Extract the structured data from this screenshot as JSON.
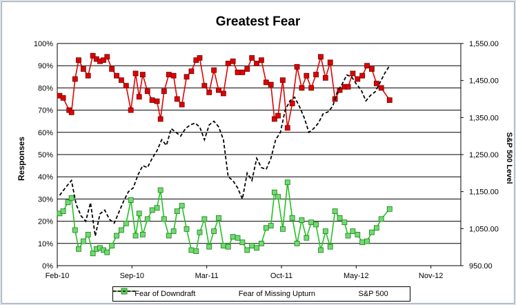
{
  "chart_data": {
    "type": "line",
    "title": "Greatest Fear",
    "ylabel": "Responses",
    "y2label": "S&P 500 Level",
    "y_ticks": [
      "0%",
      "10%",
      "20%",
      "30%",
      "40%",
      "50%",
      "60%",
      "70%",
      "80%",
      "90%",
      "100%"
    ],
    "y2_ticks": [
      "950.00",
      "1,050.00",
      "1,150.00",
      "1,250.00",
      "1,350.00",
      "1,450.00",
      "1,550.00"
    ],
    "x_ticks": [
      "Feb-10",
      "Sep-10",
      "Mar-11",
      "Oct-11",
      "May-12",
      "Nov-12"
    ],
    "ylim": [
      0,
      1
    ],
    "y2lim": [
      950,
      1550
    ],
    "xlim": [
      0,
      34
    ],
    "grid": "horizontal",
    "legend_position": "bottom",
    "series": [
      {
        "name": "Fear of Downdraft",
        "axis": "left",
        "color": "#e00000",
        "style": "solid",
        "marker": "square",
        "x": [
          0.2,
          0.5,
          1.0,
          1.2,
          1.5,
          1.8,
          2.2,
          2.6,
          3.0,
          3.3,
          3.6,
          3.9,
          4.2,
          4.6,
          5.0,
          5.4,
          5.8,
          6.2,
          6.6,
          6.9,
          7.2,
          7.6,
          8.0,
          8.4,
          8.7,
          9.0,
          9.4,
          9.8,
          10.1,
          10.5,
          10.9,
          11.3,
          11.7,
          12.0,
          12.4,
          12.8,
          13.2,
          13.6,
          14.0,
          14.4,
          14.8,
          15.2,
          15.6,
          16.0,
          16.4,
          16.8,
          17.2,
          17.6,
          18.0,
          18.3,
          18.6,
          19.0,
          19.4,
          19.8,
          20.2,
          20.6,
          21.0,
          21.4,
          21.8,
          22.2,
          22.6,
          23.0,
          23.4,
          23.8,
          24.2,
          24.5,
          24.9,
          25.3,
          25.7,
          26.1,
          26.5,
          26.9,
          27.3,
          28.0
        ],
        "values": [
          0.765,
          0.755,
          0.7,
          0.69,
          0.84,
          0.925,
          0.885,
          0.855,
          0.945,
          0.93,
          0.92,
          0.925,
          0.94,
          0.885,
          0.855,
          0.835,
          0.81,
          0.7,
          0.865,
          0.76,
          0.86,
          0.785,
          0.745,
          0.74,
          0.66,
          0.785,
          0.86,
          0.855,
          0.75,
          0.725,
          0.85,
          0.875,
          0.925,
          0.935,
          0.81,
          0.78,
          0.88,
          0.79,
          0.775,
          0.91,
          0.92,
          0.87,
          0.87,
          0.885,
          0.935,
          0.91,
          0.925,
          0.825,
          0.815,
          0.66,
          0.675,
          0.835,
          0.62,
          0.73,
          0.895,
          0.8,
          0.855,
          0.8,
          0.86,
          0.94,
          0.845,
          0.915,
          0.75,
          0.79,
          0.805,
          0.805,
          0.865,
          0.84,
          0.855,
          0.9,
          0.885,
          0.82,
          0.8,
          0.745
        ]
      },
      {
        "name": "Fear of Missing Upturn",
        "axis": "left",
        "color": "#22c022",
        "style": "solid",
        "marker": "square",
        "x": [
          0.2,
          0.5,
          0.9,
          1.2,
          1.5,
          1.8,
          2.2,
          2.6,
          3.0,
          3.3,
          3.6,
          3.9,
          4.2,
          4.6,
          5.0,
          5.4,
          5.8,
          6.2,
          6.6,
          6.9,
          7.2,
          7.6,
          8.0,
          8.4,
          8.7,
          9.0,
          9.4,
          9.8,
          10.1,
          10.5,
          10.9,
          11.3,
          11.7,
          12.0,
          12.4,
          12.8,
          13.2,
          13.6,
          14.0,
          14.4,
          14.8,
          15.2,
          15.6,
          16.0,
          16.4,
          16.8,
          17.2,
          17.6,
          18.0,
          18.3,
          18.6,
          19.0,
          19.4,
          19.8,
          20.2,
          20.6,
          21.0,
          21.4,
          21.8,
          22.2,
          22.6,
          23.0,
          23.4,
          23.8,
          24.2,
          24.5,
          24.9,
          25.3,
          25.7,
          26.1,
          26.5,
          26.9,
          27.3,
          28.0
        ],
        "values": [
          0.235,
          0.245,
          0.285,
          0.305,
          0.16,
          0.075,
          0.11,
          0.14,
          0.055,
          0.075,
          0.08,
          0.07,
          0.06,
          0.09,
          0.135,
          0.16,
          0.19,
          0.295,
          0.135,
          0.235,
          0.14,
          0.21,
          0.25,
          0.26,
          0.34,
          0.21,
          0.135,
          0.155,
          0.245,
          0.27,
          0.165,
          0.07,
          0.065,
          0.15,
          0.21,
          0.085,
          0.155,
          0.215,
          0.09,
          0.085,
          0.13,
          0.125,
          0.105,
          0.07,
          0.09,
          0.08,
          0.1,
          0.17,
          0.18,
          0.33,
          0.31,
          0.165,
          0.375,
          0.215,
          0.1,
          0.205,
          0.125,
          0.195,
          0.185,
          0.07,
          0.155,
          0.085,
          0.245,
          0.215,
          0.195,
          0.135,
          0.155,
          0.14,
          0.105,
          0.11,
          0.15,
          0.17,
          0.21,
          0.255
        ]
      },
      {
        "name": "S&P 500",
        "axis": "right",
        "color": "#000000",
        "style": "dashed",
        "marker": "none",
        "x": [
          0.2,
          0.8,
          1.2,
          1.6,
          2.0,
          2.4,
          2.8,
          3.2,
          3.6,
          4.0,
          4.4,
          4.8,
          5.2,
          5.6,
          6.0,
          6.4,
          6.8,
          7.2,
          7.6,
          8.0,
          8.4,
          8.8,
          9.2,
          9.6,
          10.0,
          10.4,
          10.8,
          11.2,
          11.6,
          12.0,
          12.4,
          12.8,
          13.2,
          13.6,
          14.0,
          14.4,
          14.8,
          15.2,
          15.6,
          16.0,
          16.4,
          16.8,
          17.2,
          17.6,
          18.0,
          18.4,
          18.8,
          19.2,
          19.6,
          20.0,
          20.4,
          20.8,
          21.2,
          21.6,
          22.0,
          22.4,
          22.8,
          23.2,
          23.6,
          24.0,
          24.4,
          24.8,
          25.2,
          25.6,
          26.0,
          26.4,
          26.8,
          27.2,
          27.6,
          28.0
        ],
        "values": [
          1140,
          1165,
          1180,
          1115,
          1085,
          1070,
          1120,
          1030,
          1090,
          1100,
          1075,
          1065,
          1095,
          1125,
          1150,
          1160,
          1195,
          1220,
          1215,
          1240,
          1260,
          1290,
          1275,
          1320,
          1310,
          1300,
          1320,
          1330,
          1335,
          1325,
          1290,
          1330,
          1340,
          1325,
          1290,
          1190,
          1180,
          1160,
          1130,
          1200,
          1180,
          1240,
          1215,
          1210,
          1240,
          1290,
          1310,
          1370,
          1395,
          1405,
          1380,
          1350,
          1310,
          1320,
          1335,
          1360,
          1365,
          1380,
          1420,
          1440,
          1465,
          1460,
          1440,
          1425,
          1395,
          1410,
          1420,
          1445,
          1470,
          1490
        ]
      }
    ]
  }
}
